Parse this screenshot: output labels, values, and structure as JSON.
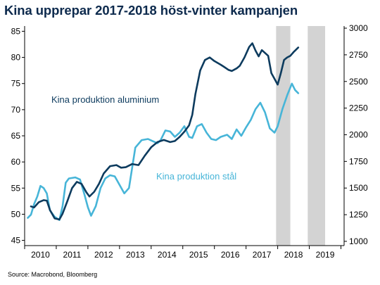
{
  "title": "Kina upprepar 2017-2018 höst-vinter kampanjen",
  "source": "Source: Macrobond, Bloomberg",
  "colors": {
    "aluminium": "#0d3b5e",
    "steel": "#47b5d8",
    "shade": "#d3d3d3",
    "axis": "#000000"
  },
  "chart_data": {
    "type": "line",
    "title": "Kina upprepar 2017-2018 höst-vinter kampanjen",
    "xlabel": "",
    "ylabel": "",
    "x_range": [
      2009.8,
      2019.9
    ],
    "x_ticks": [
      "2010",
      "2011",
      "2012",
      "2013",
      "2014",
      "2015",
      "2016",
      "2017",
      "2018",
      "2019"
    ],
    "y_left_ticks": [
      "45",
      "50",
      "55",
      "60",
      "65",
      "70",
      "75",
      "80",
      "85"
    ],
    "y_left_range": [
      44,
      86
    ],
    "y_right_ticks": [
      "1000",
      "1250",
      "1500",
      "1750",
      "2000",
      "2250",
      "2500",
      "2750",
      "3000"
    ],
    "y_right_range": [
      960,
      3020
    ],
    "grid": false,
    "shaded_periods": [
      [
        2017.75,
        2018.2
      ],
      [
        2018.75,
        2019.3
      ]
    ],
    "series": [
      {
        "name": "Kina produktion aluminium",
        "axis": "left",
        "x": [
          2010.0,
          2010.1,
          2010.25,
          2010.4,
          2010.5,
          2010.6,
          2010.75,
          2010.9,
          2011.0,
          2011.15,
          2011.3,
          2011.45,
          2011.6,
          2011.75,
          2011.85,
          2012.0,
          2012.15,
          2012.3,
          2012.5,
          2012.7,
          2012.85,
          2013.0,
          2013.2,
          2013.4,
          2013.6,
          2013.8,
          2014.0,
          2014.2,
          2014.4,
          2014.55,
          2014.7,
          2014.85,
          2015.0,
          2015.1,
          2015.2,
          2015.35,
          2015.5,
          2015.65,
          2015.8,
          2016.0,
          2016.1,
          2016.25,
          2016.35,
          2016.5,
          2016.6,
          2016.75,
          2016.9,
          2017.0,
          2017.1,
          2017.2,
          2017.3,
          2017.5,
          2017.6,
          2017.7,
          2017.8,
          2017.9,
          2018.0,
          2018.1,
          2018.2,
          2018.3,
          2018.4,
          2018.45
        ],
        "values": [
          51.5,
          51.3,
          52.3,
          52.7,
          52.6,
          50.8,
          49.2,
          49.0,
          50.1,
          52.5,
          55.0,
          56.2,
          55.8,
          54.2,
          53.4,
          54.3,
          55.8,
          57.8,
          59.2,
          59.4,
          58.9,
          59.0,
          59.6,
          59.4,
          61.2,
          62.8,
          63.8,
          64.2,
          63.8,
          64.0,
          64.8,
          65.8,
          67.0,
          69.0,
          73.0,
          77.5,
          79.5,
          80.0,
          79.3,
          78.6,
          78.2,
          77.6,
          77.4,
          77.9,
          78.4,
          80.0,
          82.0,
          82.7,
          81.3,
          80.2,
          81.4,
          80.3,
          77.0,
          75.9,
          74.8,
          77.0,
          79.5,
          80.0,
          80.3,
          81.0,
          81.6,
          81.9
        ]
      },
      {
        "name": "Kina produktion stål",
        "axis": "right",
        "x": [
          2009.9,
          2010.0,
          2010.1,
          2010.2,
          2010.3,
          2010.4,
          2010.5,
          2010.6,
          2010.75,
          2010.9,
          2011.0,
          2011.1,
          2011.2,
          2011.4,
          2011.55,
          2011.7,
          2011.8,
          2011.9,
          2012.05,
          2012.2,
          2012.35,
          2012.5,
          2012.65,
          2012.8,
          2012.95,
          2013.1,
          2013.3,
          2013.5,
          2013.7,
          2013.85,
          2014.0,
          2014.1,
          2014.25,
          2014.4,
          2014.55,
          2014.7,
          2014.85,
          2015.0,
          2015.1,
          2015.25,
          2015.4,
          2015.55,
          2015.7,
          2015.85,
          2016.0,
          2016.2,
          2016.35,
          2016.5,
          2016.65,
          2016.8,
          2016.95,
          2017.1,
          2017.25,
          2017.4,
          2017.55,
          2017.7,
          2017.8,
          2017.95,
          2018.1,
          2018.25,
          2018.35,
          2018.45
        ],
        "values": [
          1220,
          1250,
          1350,
          1420,
          1520,
          1500,
          1450,
          1290,
          1230,
          1200,
          1330,
          1550,
          1590,
          1600,
          1580,
          1430,
          1320,
          1240,
          1330,
          1500,
          1590,
          1620,
          1610,
          1530,
          1450,
          1500,
          1880,
          1950,
          1960,
          1940,
          1920,
          1950,
          2040,
          2030,
          1980,
          2020,
          2080,
          1980,
          1970,
          2080,
          2100,
          2020,
          1960,
          1950,
          1980,
          2000,
          1960,
          2050,
          1990,
          2070,
          2140,
          2240,
          2300,
          2210,
          2060,
          2020,
          2080,
          2240,
          2370,
          2480,
          2420,
          2390
        ]
      }
    ]
  },
  "labels": {
    "aluminium": "Kina produktion aluminium",
    "steel": "Kina produktion stål"
  }
}
